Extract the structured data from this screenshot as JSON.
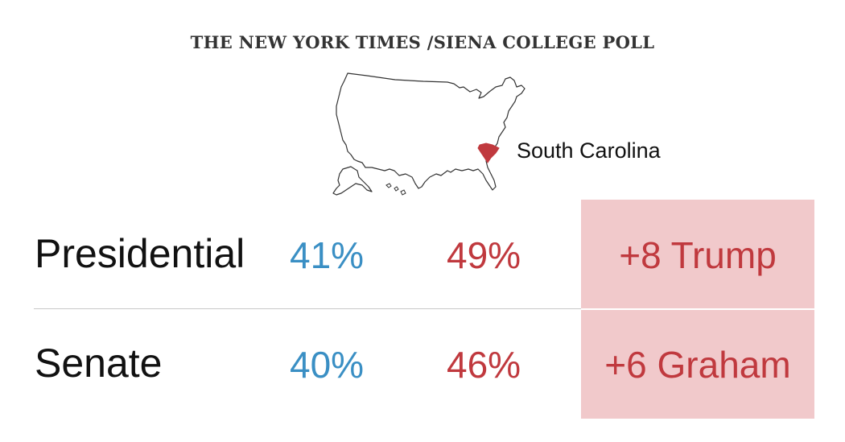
{
  "header": {
    "title": "THE NEW YORK TIMES /SIENA COLLEGE POLL"
  },
  "map": {
    "state_label": "South Carolina",
    "highlight_color": "#c0393e",
    "outline_color": "#333333"
  },
  "colors": {
    "democrat": "#3a8fc4",
    "republican": "#c0393e",
    "margin_background": "#f1c9cb"
  },
  "races": [
    {
      "label": "Presidential",
      "dem_pct": "41%",
      "rep_pct": "49%",
      "margin": "+8 Trump"
    },
    {
      "label": "Senate",
      "dem_pct": "40%",
      "rep_pct": "46%",
      "margin": "+6 Graham"
    }
  ]
}
